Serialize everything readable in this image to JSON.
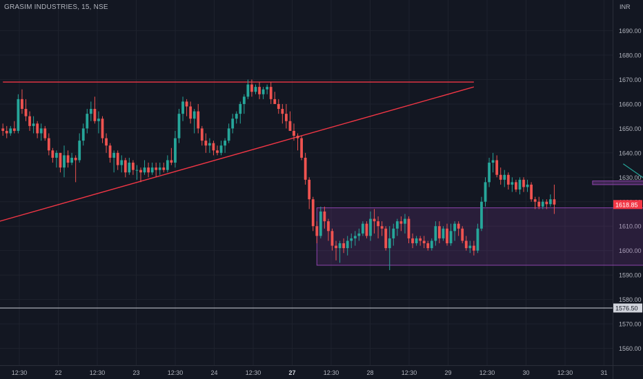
{
  "header": {
    "title": "GRASIM INDUSTRIES, 15, NSE",
    "currency": "INR"
  },
  "chart_data": {
    "type": "candlestick",
    "price_axis": {
      "ticks": [
        1560,
        1570,
        1580,
        1590,
        1600,
        1610,
        1620,
        1630,
        1640,
        1650,
        1660,
        1670,
        1680,
        1690
      ],
      "tick_labels": [
        "1560.00",
        "1570.00",
        "1580.00",
        "1590.00",
        "1600.00",
        "1610.00",
        "1620.00",
        "1630.00",
        "1640.00",
        "1650.00",
        "1660.00",
        "1670.00",
        "1680.00",
        "1690.00"
      ]
    },
    "time_axis": {
      "labels": [
        "12:30",
        "22",
        "12:30",
        "23",
        "12:30",
        "24",
        "12:30",
        "27",
        "12:30",
        "28",
        "12:30",
        "29",
        "12:30",
        "30",
        "12:30",
        "31"
      ],
      "bold": [
        "27"
      ]
    },
    "last_price": {
      "value": 1618.85,
      "label": "1618.85",
      "color": "#f23645"
    },
    "horizontal_line": {
      "value": 1576.5,
      "label": "1576.50",
      "color": "#d1d4dc"
    },
    "colors": {
      "up": "#26a69a",
      "down": "#ef5350",
      "trendline": "#f23645",
      "zone": "#8e44ad",
      "arrow": "#26a69a",
      "background": "#131722"
    },
    "annotations": {
      "resistance_line": {
        "price": 1669,
        "from_bar": 0,
        "to_bar": 123
      },
      "ascending_trendline": {
        "from_bar": -2,
        "from_price": 1611.5,
        "to_bar": 123,
        "to_price": 1667
      },
      "demand_zone": {
        "from_bar": 82,
        "to_bar": 176,
        "top": 1617.5,
        "bottom": 1594
      },
      "breakout_box": {
        "from_bar": 154,
        "to_bar": 179,
        "top": 1628.5,
        "bottom": 1627
      },
      "projection_arrow": {
        "points": [
          [
            162,
            1635.5
          ],
          [
            168,
            1629
          ],
          [
            172,
            1646.5
          ]
        ]
      }
    },
    "candles": [
      [
        1650,
        1652,
        1647,
        1649
      ],
      [
        1649,
        1651,
        1646,
        1648
      ],
      [
        1648,
        1651,
        1647,
        1650
      ],
      [
        1650,
        1653,
        1648,
        1649
      ],
      [
        1649,
        1664,
        1648,
        1662
      ],
      [
        1662,
        1666,
        1656,
        1658
      ],
      [
        1658,
        1662,
        1653,
        1655
      ],
      [
        1655,
        1657,
        1649,
        1651
      ],
      [
        1651,
        1655,
        1648,
        1652
      ],
      [
        1652,
        1653,
        1646,
        1648
      ],
      [
        1648,
        1652,
        1645,
        1650
      ],
      [
        1650,
        1651,
        1645,
        1646
      ],
      [
        1646,
        1648,
        1639,
        1641
      ],
      [
        1641,
        1642,
        1636,
        1638
      ],
      [
        1638,
        1641,
        1634,
        1640
      ],
      [
        1640,
        1640,
        1632,
        1634
      ],
      [
        1634,
        1643,
        1630,
        1639
      ],
      [
        1639,
        1641,
        1634,
        1636
      ],
      [
        1636,
        1640,
        1635,
        1638
      ],
      [
        1638,
        1639,
        1628,
        1637
      ],
      [
        1637,
        1648,
        1636,
        1645
      ],
      [
        1645,
        1652,
        1643,
        1650
      ],
      [
        1650,
        1658,
        1648,
        1656
      ],
      [
        1656,
        1661,
        1653,
        1658
      ],
      [
        1658,
        1663,
        1652,
        1653
      ],
      [
        1653,
        1657,
        1648,
        1654
      ],
      [
        1654,
        1655,
        1644,
        1646
      ],
      [
        1646,
        1648,
        1640,
        1643
      ],
      [
        1643,
        1644,
        1636,
        1638
      ],
      [
        1638,
        1641,
        1632,
        1640
      ],
      [
        1640,
        1641,
        1633,
        1635
      ],
      [
        1635,
        1639,
        1632,
        1637
      ],
      [
        1637,
        1638,
        1630,
        1632
      ],
      [
        1632,
        1638,
        1631,
        1636
      ],
      [
        1636,
        1637,
        1631,
        1633
      ],
      [
        1633,
        1635,
        1629,
        1633
      ],
      [
        1633,
        1634,
        1628,
        1632
      ],
      [
        1632,
        1637,
        1631,
        1634
      ],
      [
        1634,
        1636,
        1630,
        1632
      ],
      [
        1632,
        1636,
        1631,
        1634
      ],
      [
        1634,
        1636,
        1630,
        1633
      ],
      [
        1633,
        1636,
        1631,
        1634
      ],
      [
        1634,
        1636,
        1632,
        1633
      ],
      [
        1633,
        1639,
        1632,
        1637
      ],
      [
        1637,
        1642,
        1635,
        1636
      ],
      [
        1636,
        1649,
        1634,
        1646
      ],
      [
        1646,
        1658,
        1644,
        1656
      ],
      [
        1656,
        1663,
        1653,
        1661
      ],
      [
        1661,
        1662,
        1655,
        1659
      ],
      [
        1659,
        1661,
        1652,
        1654
      ],
      [
        1654,
        1658,
        1648,
        1657
      ],
      [
        1657,
        1660,
        1648,
        1650
      ],
      [
        1650,
        1651,
        1643,
        1645
      ],
      [
        1645,
        1648,
        1640,
        1643
      ],
      [
        1643,
        1646,
        1640,
        1644
      ],
      [
        1644,
        1645,
        1639,
        1641
      ],
      [
        1641,
        1643,
        1639,
        1640
      ],
      [
        1640,
        1645,
        1639,
        1643
      ],
      [
        1643,
        1646,
        1640,
        1645
      ],
      [
        1645,
        1652,
        1644,
        1650
      ],
      [
        1650,
        1656,
        1648,
        1654
      ],
      [
        1654,
        1657,
        1652,
        1656
      ],
      [
        1656,
        1661,
        1652,
        1660
      ],
      [
        1660,
        1664,
        1656,
        1663
      ],
      [
        1663,
        1670,
        1662,
        1668
      ],
      [
        1668,
        1670,
        1663,
        1665
      ],
      [
        1665,
        1668,
        1664,
        1667
      ],
      [
        1667,
        1669,
        1662,
        1664
      ],
      [
        1664,
        1667,
        1662,
        1666
      ],
      [
        1666,
        1668,
        1664,
        1667
      ],
      [
        1667,
        1669,
        1660,
        1662
      ],
      [
        1662,
        1665,
        1660,
        1660
      ],
      [
        1660,
        1662,
        1656,
        1658
      ],
      [
        1658,
        1660,
        1652,
        1656
      ],
      [
        1656,
        1660,
        1650,
        1653
      ],
      [
        1653,
        1657,
        1649,
        1649
      ],
      [
        1649,
        1652,
        1645,
        1647
      ],
      [
        1647,
        1648,
        1641,
        1646
      ],
      [
        1646,
        1647,
        1637,
        1638
      ],
      [
        1638,
        1640,
        1627,
        1629
      ],
      [
        1629,
        1630,
        1617,
        1621
      ],
      [
        1621,
        1622,
        1608,
        1610
      ],
      [
        1610,
        1612,
        1603,
        1606
      ],
      [
        1606,
        1618,
        1605,
        1616
      ],
      [
        1616,
        1618,
        1609,
        1612
      ],
      [
        1612,
        1613,
        1604,
        1608
      ],
      [
        1608,
        1609,
        1600,
        1602
      ],
      [
        1602,
        1604,
        1596,
        1601
      ],
      [
        1601,
        1604,
        1595,
        1603
      ],
      [
        1603,
        1605,
        1599,
        1601
      ],
      [
        1601,
        1606,
        1598,
        1604
      ],
      [
        1604,
        1607,
        1601,
        1605
      ],
      [
        1605,
        1608,
        1602,
        1606
      ],
      [
        1606,
        1609,
        1604,
        1607
      ],
      [
        1607,
        1612,
        1606,
        1611
      ],
      [
        1611,
        1612,
        1605,
        1606
      ],
      [
        1606,
        1616,
        1604,
        1613
      ],
      [
        1613,
        1617,
        1607,
        1612
      ],
      [
        1612,
        1614,
        1605,
        1610
      ],
      [
        1610,
        1612,
        1606,
        1609
      ],
      [
        1609,
        1610,
        1600,
        1601
      ],
      [
        1601,
        1610,
        1592,
        1605
      ],
      [
        1605,
        1611,
        1602,
        1609
      ],
      [
        1609,
        1613,
        1606,
        1612
      ],
      [
        1612,
        1614,
        1608,
        1611
      ],
      [
        1611,
        1615,
        1607,
        1613
      ],
      [
        1613,
        1614,
        1603,
        1605
      ],
      [
        1605,
        1607,
        1601,
        1603
      ],
      [
        1603,
        1606,
        1602,
        1605
      ],
      [
        1605,
        1606,
        1602,
        1604
      ],
      [
        1604,
        1606,
        1601,
        1603
      ],
      [
        1603,
        1604,
        1600,
        1601
      ],
      [
        1601,
        1605,
        1600,
        1604
      ],
      [
        1604,
        1612,
        1602,
        1610
      ],
      [
        1610,
        1612,
        1603,
        1605
      ],
      [
        1605,
        1610,
        1604,
        1609
      ],
      [
        1609,
        1611,
        1602,
        1603
      ],
      [
        1603,
        1611,
        1602,
        1608
      ],
      [
        1608,
        1612,
        1604,
        1611
      ],
      [
        1611,
        1612,
        1606,
        1609
      ],
      [
        1609,
        1610,
        1603,
        1604
      ],
      [
        1604,
        1606,
        1600,
        1601
      ],
      [
        1601,
        1604,
        1599,
        1602
      ],
      [
        1602,
        1604,
        1598,
        1600
      ],
      [
        1600,
        1611,
        1599,
        1609
      ],
      [
        1609,
        1622,
        1608,
        1620
      ],
      [
        1620,
        1630,
        1618,
        1628
      ],
      [
        1628,
        1638,
        1626,
        1636
      ],
      [
        1636,
        1640,
        1632,
        1637
      ],
      [
        1637,
        1639,
        1630,
        1631
      ],
      [
        1631,
        1634,
        1627,
        1629
      ],
      [
        1629,
        1633,
        1626,
        1631
      ],
      [
        1631,
        1632,
        1625,
        1627
      ],
      [
        1627,
        1630,
        1624,
        1628
      ],
      [
        1628,
        1629,
        1624,
        1625
      ],
      [
        1625,
        1630,
        1623,
        1629
      ],
      [
        1629,
        1630,
        1624,
        1626
      ],
      [
        1626,
        1629,
        1624,
        1627
      ],
      [
        1627,
        1628,
        1620,
        1621
      ],
      [
        1621,
        1622,
        1617,
        1620
      ],
      [
        1620,
        1622,
        1617,
        1618
      ],
      [
        1618,
        1621,
        1617,
        1620
      ],
      [
        1620,
        1621,
        1617,
        1619
      ],
      [
        1619,
        1623,
        1618,
        1621
      ],
      [
        1621,
        1627,
        1615,
        1618.85
      ]
    ]
  }
}
